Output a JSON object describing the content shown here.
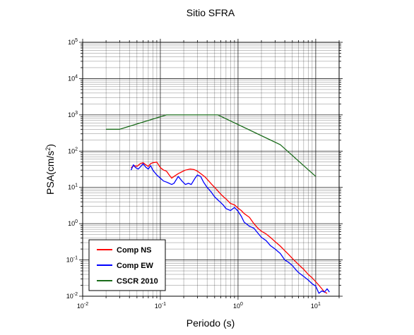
{
  "chart_data": {
    "type": "line",
    "title": "Sitio SFRA",
    "xlabel": "Periodo (s)",
    "ylabel": "PSA(cm/s²)",
    "ylabel_base": "PSA(cm/s",
    "ylabel_sup": "2",
    "ylabel_close": ")",
    "x_scale": "log",
    "y_scale": "log",
    "xlim": [
      0.01,
      20
    ],
    "ylim": [
      0.01,
      100000
    ],
    "grid": true,
    "legend_position": "bottom-left",
    "x_ticks": [
      {
        "base": "10",
        "exp": "-2",
        "value": 0.01
      },
      {
        "base": "10",
        "exp": "-1",
        "value": 0.1
      },
      {
        "base": "10",
        "exp": "0",
        "value": 1
      },
      {
        "base": "10",
        "exp": "1",
        "value": 10
      }
    ],
    "y_ticks": [
      {
        "base": "10",
        "exp": "-2",
        "value": 0.01
      },
      {
        "base": "10",
        "exp": "-1",
        "value": 0.1
      },
      {
        "base": "10",
        "exp": "0",
        "value": 1
      },
      {
        "base": "10",
        "exp": "1",
        "value": 10
      },
      {
        "base": "10",
        "exp": "2",
        "value": 100
      },
      {
        "base": "10",
        "exp": "3",
        "value": 1000
      },
      {
        "base": "10",
        "exp": "4",
        "value": 10000
      },
      {
        "base": "10",
        "exp": "5",
        "value": 100000
      }
    ],
    "series": [
      {
        "name": "Comp NS",
        "color": "#ff0000",
        "x": [
          0.042,
          0.046,
          0.05,
          0.055,
          0.06,
          0.065,
          0.07,
          0.075,
          0.08,
          0.09,
          0.1,
          0.11,
          0.12,
          0.13,
          0.14,
          0.15,
          0.17,
          0.19,
          0.21,
          0.24,
          0.27,
          0.3,
          0.34,
          0.38,
          0.42,
          0.46,
          0.5,
          0.55,
          0.6,
          0.65,
          0.7,
          0.8,
          0.9,
          1.0,
          1.1,
          1.2,
          1.4,
          1.6,
          1.8,
          2.0,
          2.3,
          2.6,
          3.0,
          3.5,
          4.0,
          4.5,
          5.0,
          5.5,
          6.0,
          7.0,
          8.0,
          9.0,
          10.0,
          11.0,
          12.0,
          13.0,
          14.0
        ],
        "values": [
          35,
          40,
          38,
          45,
          48,
          42,
          38,
          45,
          48,
          50,
          35,
          30,
          28,
          22,
          18,
          20,
          24,
          27,
          30,
          32,
          31,
          28,
          23,
          19,
          15,
          12,
          10,
          8,
          6.5,
          5.5,
          4.8,
          3.6,
          3.3,
          2.7,
          2.3,
          1.9,
          1.5,
          1.0,
          0.75,
          0.62,
          0.52,
          0.42,
          0.32,
          0.24,
          0.18,
          0.14,
          0.11,
          0.09,
          0.075,
          0.055,
          0.04,
          0.032,
          0.025,
          0.02,
          0.016,
          0.013,
          0.012
        ]
      },
      {
        "name": "Comp EW",
        "color": "#0000ff",
        "x": [
          0.042,
          0.045,
          0.048,
          0.052,
          0.056,
          0.06,
          0.065,
          0.07,
          0.075,
          0.08,
          0.09,
          0.1,
          0.11,
          0.12,
          0.13,
          0.14,
          0.15,
          0.17,
          0.19,
          0.21,
          0.23,
          0.25,
          0.28,
          0.3,
          0.33,
          0.36,
          0.4,
          0.45,
          0.5,
          0.55,
          0.6,
          0.65,
          0.7,
          0.8,
          0.9,
          1.0,
          1.1,
          1.2,
          1.4,
          1.6,
          1.8,
          2.0,
          2.3,
          2.6,
          3.0,
          3.5,
          4.0,
          4.5,
          5.0,
          5.5,
          6.0,
          7.0,
          8.0,
          9.0,
          10.0,
          11.0,
          12.0,
          13.0,
          14.0,
          15.0
        ],
        "values": [
          30,
          42,
          35,
          32,
          38,
          45,
          36,
          32,
          40,
          30,
          22,
          18,
          15,
          14,
          13,
          12,
          13,
          20,
          15,
          12,
          13,
          12,
          18,
          22,
          20,
          14,
          10,
          7.5,
          5.5,
          4.5,
          3.8,
          3.2,
          2.6,
          2.3,
          2.8,
          2.2,
          1.6,
          1.1,
          0.85,
          0.75,
          0.55,
          0.42,
          0.34,
          0.25,
          0.2,
          0.15,
          0.1,
          0.085,
          0.07,
          0.055,
          0.045,
          0.035,
          0.028,
          0.022,
          0.019,
          0.012,
          0.014,
          0.013,
          0.016,
          0.013
        ]
      },
      {
        "name": "CSCR 2010",
        "color": "#1a6b1a",
        "x": [
          0.02,
          0.03,
          0.12,
          0.55,
          3.5,
          10.0
        ],
        "values": [
          400,
          400,
          1000,
          1000,
          150,
          20
        ]
      }
    ]
  }
}
